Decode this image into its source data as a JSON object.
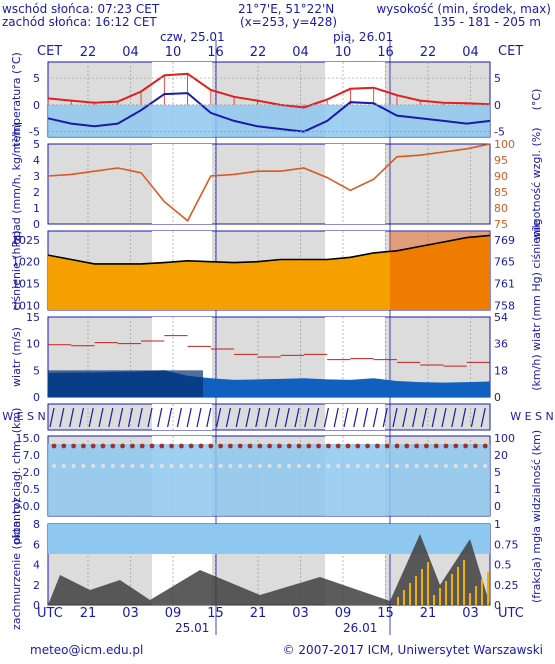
{
  "header": {
    "sunrise": "wschód słońca: 07:23 CET",
    "sunset": "zachód słońca: 16:12 CET",
    "coords": "21°7'E, 51°22'N",
    "grid": "(x=253, y=428)",
    "height_label": "wysokość (min, środek, max)",
    "height_values": "135 - 181 - 205 m"
  },
  "top_axis": {
    "tz_left": "CET",
    "tz_right": "CET",
    "day1": "czw, 25.01",
    "day2": "pią, 26.01",
    "hours": [
      "22",
      "04",
      "10",
      "16",
      "22",
      "04",
      "10",
      "16",
      "22",
      "04"
    ]
  },
  "bottom_axis": {
    "tz_left": "UTC",
    "tz_right": "UTC",
    "hours": [
      "21",
      "03",
      "09",
      "15",
      "21",
      "03",
      "09",
      "15",
      "21",
      "03"
    ],
    "day1": "25.01",
    "day2": "26.01"
  },
  "footer": {
    "email": "meteo@icm.edu.pl",
    "copyright": "© 2007-2017 ICM, Uniwersytet Warszawski"
  },
  "colors": {
    "temp_line": "#e02020",
    "dew_line": "#1a1aa8",
    "sky_blue": "#8ec8f0",
    "pressure_fill": "#f5a000",
    "pressure_fill_dark": "#e85000",
    "wind_fill": "#1060c0",
    "wind_fill_dark": "#063070",
    "humidity_line": "#d85a20",
    "night_grey": "#d0d0d0",
    "cloud_dark": "#404040"
  },
  "chart_data": [
    {
      "type": "line",
      "panel": "temperature",
      "ylabel_left": "temperatura (°C)",
      "ylabel_right": "(°C)",
      "ylim": [
        -6,
        8
      ],
      "yticks": [
        -5,
        0,
        5
      ],
      "x_hours_cet": [
        20,
        23,
        2,
        5,
        8,
        11,
        14,
        17,
        20,
        23,
        2,
        5,
        8,
        11,
        14,
        17,
        20,
        23,
        2,
        5
      ],
      "series": [
        {
          "values": [
            1.2,
            0.8,
            0.4,
            0.6,
            2.5,
            5.5,
            5.8,
            2.8,
            1.5,
            0.8,
            0.0,
            -0.5,
            1.0,
            3.0,
            3.2,
            1.8,
            0.8,
            0.4,
            0.3,
            0.1
          ]
        },
        {
          "values": [
            -2.5,
            -3.5,
            -4.0,
            -3.5,
            -1.0,
            2.0,
            2.2,
            -1.5,
            -3.0,
            -4.0,
            -4.5,
            -5.0,
            -3.0,
            0.5,
            0.3,
            -2.0,
            -2.5,
            -3.0,
            -3.5,
            -3.0
          ]
        }
      ]
    },
    {
      "type": "line",
      "panel": "precipitation-humidity",
      "ylabel_left": "opad (mm/h, kg/m²/h)",
      "ylabel_right": "wilgotność wzgl. (%)",
      "ylim": [
        0,
        5
      ],
      "yticks": [
        0,
        1,
        2,
        3,
        4,
        5
      ],
      "y2lim": [
        75,
        100
      ],
      "y2ticks": [
        75,
        80,
        85,
        90,
        95,
        100
      ],
      "x_hours_cet": [
        20,
        23,
        2,
        5,
        8,
        11,
        14,
        17,
        20,
        23,
        2,
        5,
        8,
        11,
        14,
        17,
        20,
        23,
        2,
        5
      ],
      "series": [
        {
          "values": [
            90,
            90.5,
            91.5,
            92.5,
            91,
            82,
            76,
            90,
            90.5,
            91.5,
            91.5,
            92.5,
            89.5,
            85.5,
            89,
            96,
            96.5,
            97.5,
            98.5,
            100
          ]
        }
      ]
    },
    {
      "type": "area",
      "panel": "pressure",
      "ylabel_left": "ciśnienie (hPa)",
      "ylabel_right": "(mm Hg) ciśnienie",
      "ylim": [
        1009,
        1027
      ],
      "yticks": [
        1010,
        1015,
        1020,
        1025
      ],
      "y2ticks": [
        "758",
        "761",
        "765",
        "769"
      ],
      "x_hours_cet": [
        20,
        23,
        2,
        5,
        8,
        11,
        14,
        17,
        20,
        23,
        2,
        5,
        8,
        11,
        14,
        17,
        20,
        23,
        2,
        5
      ],
      "series": [
        {
          "values": [
            1021.5,
            1020.5,
            1019.5,
            1019.5,
            1019.5,
            1019.8,
            1020.2,
            1020,
            1019.8,
            1020,
            1020.5,
            1020.5,
            1020.5,
            1021,
            1022,
            1022.5,
            1023.5,
            1024.5,
            1025.5,
            1026
          ]
        }
      ]
    },
    {
      "type": "area",
      "panel": "wind",
      "ylabel_left": "wiatr (m/s)",
      "ylabel_right": "(km/h) wiatr",
      "ylim": [
        0,
        15
      ],
      "yticks": [
        0,
        5,
        10,
        15
      ],
      "y2ticks": [
        "0",
        "18",
        "36",
        "54"
      ],
      "x_hours_cet": [
        20,
        23,
        2,
        5,
        8,
        11,
        14,
        17,
        20,
        23,
        2,
        5,
        8,
        11,
        14,
        17,
        20,
        23,
        2,
        5
      ],
      "series": [
        {
          "values": [
            4.5,
            4.6,
            4.6,
            4.7,
            4.8,
            5.0,
            4.0,
            3.5,
            3.2,
            3.3,
            3.4,
            3.5,
            3.3,
            3.2,
            3.5,
            3.0,
            2.8,
            2.7,
            2.8,
            2.9
          ]
        },
        {
          "values": [
            9.8,
            9.6,
            10.2,
            10.0,
            10.5,
            11.5,
            9.5,
            9.0,
            8.0,
            7.5,
            7.8,
            8.0,
            7.0,
            7.2,
            7.0,
            6.5,
            6.0,
            5.8,
            6.5,
            7.0
          ]
        }
      ]
    },
    {
      "type": "scatter",
      "panel": "wind-direction",
      "ylabel_left": "W E S N",
      "ylabel_right": "W E S N"
    },
    {
      "type": "scatter",
      "panel": "cloud-base-visibility",
      "ylabel_left": "pion. rozciągł. chm. (km)",
      "ylabel_right": "widzialność (km)",
      "yticks": [
        "0.0",
        "0.5",
        "2.0",
        "7.0",
        "15.0"
      ],
      "y2ticks": [
        "0",
        "1",
        "5",
        "20",
        "100"
      ]
    },
    {
      "type": "area",
      "panel": "cloud-cover-fog",
      "ylabel_left": "zachmurzenie (oktanty)",
      "ylabel_right": "(frakcja) mgła",
      "ylim": [
        0,
        8
      ],
      "yticks": [
        0,
        2,
        4,
        6,
        8
      ],
      "y2ticks": [
        "0",
        "0.25",
        "0.5",
        "0.75",
        "1"
      ]
    }
  ]
}
